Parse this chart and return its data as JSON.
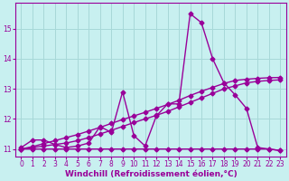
{
  "background_color": "#c8f0f0",
  "grid_color": "#a8d8d8",
  "line_color": "#990099",
  "marker": "D",
  "marker_size": 2.5,
  "line_width": 1.0,
  "xlabel": "Windchill (Refroidissement éolien,°C)",
  "xlabel_fontsize": 6.5,
  "tick_fontsize": 5.5,
  "ylim": [
    10.75,
    15.85
  ],
  "xlim": [
    -0.5,
    23.5
  ],
  "yticks": [
    11,
    12,
    13,
    14,
    15
  ],
  "xticks": [
    0,
    1,
    2,
    3,
    4,
    5,
    6,
    7,
    8,
    9,
    10,
    11,
    12,
    13,
    14,
    15,
    16,
    17,
    18,
    19,
    20,
    21,
    22,
    23
  ],
  "series": [
    [
      11.05,
      11.3,
      11.3,
      11.15,
      11.05,
      11.1,
      11.2,
      11.75,
      11.55,
      12.9,
      11.45,
      11.1,
      12.1,
      12.5,
      12.5,
      15.5,
      15.2,
      14.0,
      13.2,
      12.8,
      12.35,
      11.05,
      11.0,
      10.95
    ],
    [
      11.0,
      11.0,
      11.0,
      11.0,
      11.0,
      11.0,
      11.0,
      11.0,
      11.0,
      11.0,
      11.0,
      11.0,
      11.0,
      11.0,
      11.0,
      11.0,
      11.0,
      11.0,
      11.0,
      11.0,
      11.0,
      11.0,
      11.0,
      10.95
    ],
    [
      11.0,
      11.05,
      11.1,
      11.15,
      11.2,
      11.28,
      11.38,
      11.5,
      11.62,
      11.75,
      11.88,
      12.0,
      12.12,
      12.25,
      12.4,
      12.55,
      12.7,
      12.85,
      13.0,
      13.1,
      13.2,
      13.25,
      13.28,
      13.3
    ],
    [
      11.0,
      11.08,
      11.18,
      11.28,
      11.38,
      11.48,
      11.6,
      11.72,
      11.85,
      11.98,
      12.1,
      12.22,
      12.35,
      12.48,
      12.62,
      12.78,
      12.92,
      13.05,
      13.18,
      13.28,
      13.32,
      13.35,
      13.37,
      13.38
    ]
  ]
}
